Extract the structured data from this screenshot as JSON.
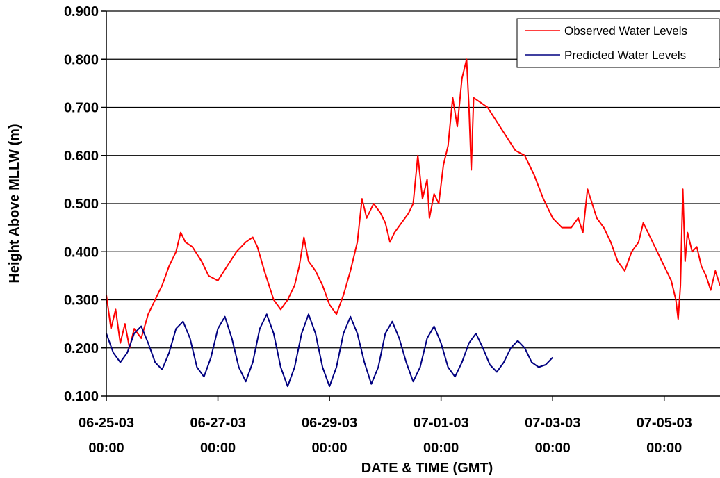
{
  "chart_data": {
    "type": "line",
    "title": "",
    "xlabel": "DATE & TIME (GMT)",
    "ylabel": "Height Above MLLW (m)",
    "ylim": [
      0.1,
      0.9
    ],
    "xlim": [
      "2003-06-25 00:00",
      "2003-07-06 00:00"
    ],
    "grid": "horizontal",
    "legend_position": "top-right",
    "y_ticks": [
      "0.100",
      "0.200",
      "0.300",
      "0.400",
      "0.500",
      "0.600",
      "0.700",
      "0.800",
      "0.900"
    ],
    "x_ticks": [
      {
        "date": "06-25-03",
        "time": "00:00",
        "x": "2003-06-25 00:00"
      },
      {
        "date": "06-27-03",
        "time": "00:00",
        "x": "2003-06-27 00:00"
      },
      {
        "date": "06-29-03",
        "time": "00:00",
        "x": "2003-06-29 00:00"
      },
      {
        "date": "07-01-03",
        "time": "00:00",
        "x": "2003-07-01 00:00"
      },
      {
        "date": "07-03-03",
        "time": "00:00",
        "x": "2003-07-03 00:00"
      },
      {
        "date": "07-05-03",
        "time": "00:00",
        "x": "2003-07-05 00:00"
      }
    ],
    "series": [
      {
        "name": "Observed Water Levels",
        "color": "#ff0000",
        "points": [
          [
            "2003-06-25 00:00",
            0.31
          ],
          [
            "2003-06-25 02:00",
            0.24
          ],
          [
            "2003-06-25 04:00",
            0.28
          ],
          [
            "2003-06-25 06:00",
            0.21
          ],
          [
            "2003-06-25 08:00",
            0.25
          ],
          [
            "2003-06-25 10:00",
            0.2
          ],
          [
            "2003-06-25 12:00",
            0.24
          ],
          [
            "2003-06-25 15:00",
            0.22
          ],
          [
            "2003-06-25 18:00",
            0.27
          ],
          [
            "2003-06-25 21:00",
            0.3
          ],
          [
            "2003-06-26 00:00",
            0.33
          ],
          [
            "2003-06-26 03:00",
            0.37
          ],
          [
            "2003-06-26 06:00",
            0.4
          ],
          [
            "2003-06-26 08:00",
            0.44
          ],
          [
            "2003-06-26 10:00",
            0.42
          ],
          [
            "2003-06-26 13:00",
            0.41
          ],
          [
            "2003-06-26 17:00",
            0.38
          ],
          [
            "2003-06-26 20:00",
            0.35
          ],
          [
            "2003-06-27 00:00",
            0.34
          ],
          [
            "2003-06-27 04:00",
            0.37
          ],
          [
            "2003-06-27 08:00",
            0.4
          ],
          [
            "2003-06-27 12:00",
            0.42
          ],
          [
            "2003-06-27 15:00",
            0.43
          ],
          [
            "2003-06-27 17:00",
            0.41
          ],
          [
            "2003-06-27 20:00",
            0.36
          ],
          [
            "2003-06-28 00:00",
            0.3
          ],
          [
            "2003-06-28 03:00",
            0.28
          ],
          [
            "2003-06-28 06:00",
            0.3
          ],
          [
            "2003-06-28 09:00",
            0.33
          ],
          [
            "2003-06-28 11:00",
            0.37
          ],
          [
            "2003-06-28 13:00",
            0.43
          ],
          [
            "2003-06-28 15:00",
            0.38
          ],
          [
            "2003-06-28 18:00",
            0.36
          ],
          [
            "2003-06-28 21:00",
            0.33
          ],
          [
            "2003-06-29 00:00",
            0.29
          ],
          [
            "2003-06-29 03:00",
            0.27
          ],
          [
            "2003-06-29 06:00",
            0.31
          ],
          [
            "2003-06-29 09:00",
            0.36
          ],
          [
            "2003-06-29 12:00",
            0.42
          ],
          [
            "2003-06-29 14:00",
            0.51
          ],
          [
            "2003-06-29 16:00",
            0.47
          ],
          [
            "2003-06-29 19:00",
            0.5
          ],
          [
            "2003-06-29 22:00",
            0.48
          ],
          [
            "2003-06-30 00:00",
            0.46
          ],
          [
            "2003-06-30 02:00",
            0.42
          ],
          [
            "2003-06-30 04:00",
            0.44
          ],
          [
            "2003-06-30 07:00",
            0.46
          ],
          [
            "2003-06-30 10:00",
            0.48
          ],
          [
            "2003-06-30 12:00",
            0.5
          ],
          [
            "2003-06-30 14:00",
            0.6
          ],
          [
            "2003-06-30 16:00",
            0.51
          ],
          [
            "2003-06-30 18:00",
            0.55
          ],
          [
            "2003-06-30 19:00",
            0.47
          ],
          [
            "2003-06-30 21:00",
            0.52
          ],
          [
            "2003-06-30 23:00",
            0.5
          ],
          [
            "2003-07-01 01:00",
            0.58
          ],
          [
            "2003-07-01 03:00",
            0.62
          ],
          [
            "2003-07-01 05:00",
            0.72
          ],
          [
            "2003-07-01 07:00",
            0.66
          ],
          [
            "2003-07-01 09:00",
            0.76
          ],
          [
            "2003-07-01 11:00",
            0.8
          ],
          [
            "2003-07-01 12:00",
            0.7
          ],
          [
            "2003-07-01 13:00",
            0.57
          ],
          [
            "2003-07-01 14:00",
            0.72
          ],
          [
            "2003-07-01 17:00",
            0.71
          ],
          [
            "2003-07-01 20:00",
            0.7
          ],
          [
            "2003-07-02 00:00",
            0.67
          ],
          [
            "2003-07-02 04:00",
            0.64
          ],
          [
            "2003-07-02 08:00",
            0.61
          ],
          [
            "2003-07-02 12:00",
            0.6
          ],
          [
            "2003-07-02 16:00",
            0.56
          ],
          [
            "2003-07-02 20:00",
            0.51
          ],
          [
            "2003-07-03 00:00",
            0.47
          ],
          [
            "2003-07-03 04:00",
            0.45
          ],
          [
            "2003-07-03 08:00",
            0.45
          ],
          [
            "2003-07-03 11:00",
            0.47
          ],
          [
            "2003-07-03 13:00",
            0.44
          ],
          [
            "2003-07-03 15:00",
            0.53
          ],
          [
            "2003-07-03 17:00",
            0.5
          ],
          [
            "2003-07-03 19:00",
            0.47
          ],
          [
            "2003-07-03 22:00",
            0.45
          ],
          [
            "2003-07-04 01:00",
            0.42
          ],
          [
            "2003-07-04 04:00",
            0.38
          ],
          [
            "2003-07-04 07:00",
            0.36
          ],
          [
            "2003-07-04 10:00",
            0.4
          ],
          [
            "2003-07-04 13:00",
            0.42
          ],
          [
            "2003-07-04 15:00",
            0.46
          ],
          [
            "2003-07-04 18:00",
            0.43
          ],
          [
            "2003-07-04 21:00",
            0.4
          ],
          [
            "2003-07-05 00:00",
            0.37
          ],
          [
            "2003-07-05 03:00",
            0.34
          ],
          [
            "2003-07-05 05:00",
            0.3
          ],
          [
            "2003-07-05 06:00",
            0.26
          ],
          [
            "2003-07-05 07:00",
            0.33
          ],
          [
            "2003-07-05 08:00",
            0.53
          ],
          [
            "2003-07-05 09:00",
            0.38
          ],
          [
            "2003-07-05 10:00",
            0.44
          ],
          [
            "2003-07-05 12:00",
            0.4
          ],
          [
            "2003-07-05 14:00",
            0.41
          ],
          [
            "2003-07-05 16:00",
            0.37
          ],
          [
            "2003-07-05 18:00",
            0.35
          ],
          [
            "2003-07-05 20:00",
            0.32
          ],
          [
            "2003-07-05 22:00",
            0.36
          ],
          [
            "2003-07-06 00:00",
            0.33
          ]
        ]
      },
      {
        "name": "Predicted Water Levels",
        "color": "#000080",
        "points": [
          [
            "2003-06-25 00:00",
            0.23
          ],
          [
            "2003-06-25 03:00",
            0.19
          ],
          [
            "2003-06-25 06:00",
            0.17
          ],
          [
            "2003-06-25 09:00",
            0.19
          ],
          [
            "2003-06-25 12:00",
            0.23
          ],
          [
            "2003-06-25 15:00",
            0.245
          ],
          [
            "2003-06-25 18:00",
            0.21
          ],
          [
            "2003-06-25 21:00",
            0.17
          ],
          [
            "2003-06-26 00:00",
            0.155
          ],
          [
            "2003-06-26 03:00",
            0.19
          ],
          [
            "2003-06-26 06:00",
            0.24
          ],
          [
            "2003-06-26 09:00",
            0.255
          ],
          [
            "2003-06-26 12:00",
            0.22
          ],
          [
            "2003-06-26 15:00",
            0.16
          ],
          [
            "2003-06-26 18:00",
            0.14
          ],
          [
            "2003-06-26 21:00",
            0.18
          ],
          [
            "2003-06-27 00:00",
            0.24
          ],
          [
            "2003-06-27 03:00",
            0.265
          ],
          [
            "2003-06-27 06:00",
            0.22
          ],
          [
            "2003-06-27 09:00",
            0.16
          ],
          [
            "2003-06-27 12:00",
            0.13
          ],
          [
            "2003-06-27 15:00",
            0.17
          ],
          [
            "2003-06-27 18:00",
            0.24
          ],
          [
            "2003-06-27 21:00",
            0.27
          ],
          [
            "2003-06-28 00:00",
            0.23
          ],
          [
            "2003-06-28 03:00",
            0.16
          ],
          [
            "2003-06-28 06:00",
            0.12
          ],
          [
            "2003-06-28 09:00",
            0.16
          ],
          [
            "2003-06-28 12:00",
            0.23
          ],
          [
            "2003-06-28 15:00",
            0.27
          ],
          [
            "2003-06-28 18:00",
            0.23
          ],
          [
            "2003-06-28 21:00",
            0.16
          ],
          [
            "2003-06-29 00:00",
            0.12
          ],
          [
            "2003-06-29 03:00",
            0.16
          ],
          [
            "2003-06-29 06:00",
            0.23
          ],
          [
            "2003-06-29 09:00",
            0.265
          ],
          [
            "2003-06-29 12:00",
            0.23
          ],
          [
            "2003-06-29 15:00",
            0.17
          ],
          [
            "2003-06-29 18:00",
            0.125
          ],
          [
            "2003-06-29 21:00",
            0.16
          ],
          [
            "2003-06-30 00:00",
            0.23
          ],
          [
            "2003-06-30 03:00",
            0.255
          ],
          [
            "2003-06-30 06:00",
            0.22
          ],
          [
            "2003-06-30 09:00",
            0.17
          ],
          [
            "2003-06-30 12:00",
            0.13
          ],
          [
            "2003-06-30 15:00",
            0.16
          ],
          [
            "2003-06-30 18:00",
            0.22
          ],
          [
            "2003-06-30 21:00",
            0.245
          ],
          [
            "2003-07-01 00:00",
            0.21
          ],
          [
            "2003-07-01 03:00",
            0.16
          ],
          [
            "2003-07-01 06:00",
            0.14
          ],
          [
            "2003-07-01 09:00",
            0.17
          ],
          [
            "2003-07-01 12:00",
            0.21
          ],
          [
            "2003-07-01 15:00",
            0.23
          ],
          [
            "2003-07-01 18:00",
            0.2
          ],
          [
            "2003-07-01 21:00",
            0.165
          ],
          [
            "2003-07-02 00:00",
            0.15
          ],
          [
            "2003-07-02 03:00",
            0.17
          ],
          [
            "2003-07-02 06:00",
            0.2
          ],
          [
            "2003-07-02 09:00",
            0.215
          ],
          [
            "2003-07-02 12:00",
            0.2
          ],
          [
            "2003-07-02 15:00",
            0.17
          ],
          [
            "2003-07-02 18:00",
            0.16
          ],
          [
            "2003-07-02 21:00",
            0.165
          ],
          [
            "2003-07-03 00:00",
            0.18
          ]
        ]
      }
    ]
  },
  "legend": {
    "observed_label": "Observed Water Levels",
    "predicted_label": "Predicted Water Levels"
  }
}
